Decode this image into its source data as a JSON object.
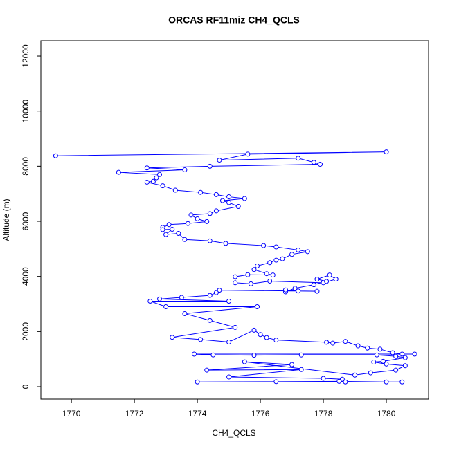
{
  "chart_data": {
    "type": "line",
    "marker": "open-circle",
    "color": "#0000ff",
    "title": "ORCAS RF11miz CH4_QCLS",
    "xlabel": "CH4_QCLS",
    "ylabel": "Altitude (m)",
    "xlim": [
      1769.03,
      1781.34
    ],
    "ylim": [
      -452,
      12553
    ],
    "xticks": [
      1770,
      1772,
      1774,
      1776,
      1778,
      1780
    ],
    "yticks": [
      0,
      2000,
      4000,
      6000,
      8000,
      10000,
      12000
    ],
    "x": [
      1769.5,
      1780.0,
      1775.6,
      1774.7,
      1777.2,
      1777.7,
      1777.9,
      1774.4,
      1772.4,
      1773.6,
      1771.5,
      1772.8,
      1772.7,
      1772.6,
      1772.4,
      1772.9,
      1773.3,
      1774.1,
      1774.6,
      1775.0,
      1775.5,
      1774.8,
      1775.0,
      1775.3,
      1774.6,
      1774.4,
      1773.8,
      1774.0,
      1774.3,
      1773.7,
      1773.1,
      1772.9,
      1772.9,
      1773.2,
      1773.0,
      1773.4,
      1773.6,
      1774.4,
      1774.9,
      1776.1,
      1776.5,
      1777.2,
      1777.5,
      1777.0,
      1776.7,
      1776.5,
      1776.3,
      1775.9,
      1775.8,
      1776.2,
      1776.4,
      1775.6,
      1775.2,
      1775.2,
      1775.7,
      1776.3,
      1778.0,
      1778.4,
      1778.2,
      1777.8,
      1778.1,
      1777.7,
      1777.1,
      1776.8,
      1776.8,
      1777.2,
      1777.8,
      1774.7,
      1774.6,
      1774.4,
      1773.5,
      1772.8,
      1775.0,
      1772.5,
      1773.0,
      1775.9,
      1773.6,
      1774.4,
      1775.2,
      1773.2,
      1774.1,
      1775.0,
      1775.8,
      1776.0,
      1776.2,
      1776.5,
      1778.1,
      1778.3,
      1778.7,
      1779.1,
      1779.4,
      1779.8,
      1780.2,
      1780.5,
      1780.9,
      1773.9,
      1774.5,
      1775.8,
      1777.3,
      1779.7,
      1780.3,
      1780.6,
      1779.9,
      1779.6,
      1780.0,
      1780.6,
      1780.3,
      1779.5,
      1779.0,
      1775.5,
      1777.0,
      1774.3,
      1777.3,
      1775.0,
      1778.0,
      1778.6,
      1778.7,
      1774.0,
      1776.5,
      1778.5,
      1780.0,
      1780.5
    ],
    "values": [
      8380,
      8520,
      8440,
      8220,
      8290,
      8140,
      8070,
      8000,
      7940,
      7870,
      7780,
      7700,
      7580,
      7450,
      7420,
      7290,
      7130,
      7050,
      6970,
      6890,
      6830,
      6750,
      6680,
      6540,
      6380,
      6280,
      6230,
      6090,
      5990,
      5920,
      5880,
      5780,
      5700,
      5710,
      5520,
      5560,
      5340,
      5290,
      5200,
      5120,
      5070,
      4960,
      4900,
      4800,
      4640,
      4590,
      4500,
      4380,
      4250,
      4100,
      4050,
      4060,
      3990,
      3770,
      3730,
      3830,
      3770,
      3900,
      4050,
      3900,
      3820,
      3700,
      3570,
      3440,
      3510,
      3470,
      3460,
      3500,
      3410,
      3310,
      3240,
      3180,
      3100,
      3100,
      2900,
      2900,
      2650,
      2400,
      2150,
      1790,
      1710,
      1620,
      2050,
      1890,
      1780,
      1690,
      1610,
      1580,
      1640,
      1480,
      1400,
      1360,
      1230,
      1180,
      1180,
      1180,
      1150,
      1140,
      1150,
      1150,
      1100,
      1050,
      920,
      890,
      820,
      760,
      600,
      500,
      420,
      900,
      800,
      600,
      620,
      350,
      300,
      270,
      170,
      170,
      180,
      190,
      170,
      170
    ]
  }
}
